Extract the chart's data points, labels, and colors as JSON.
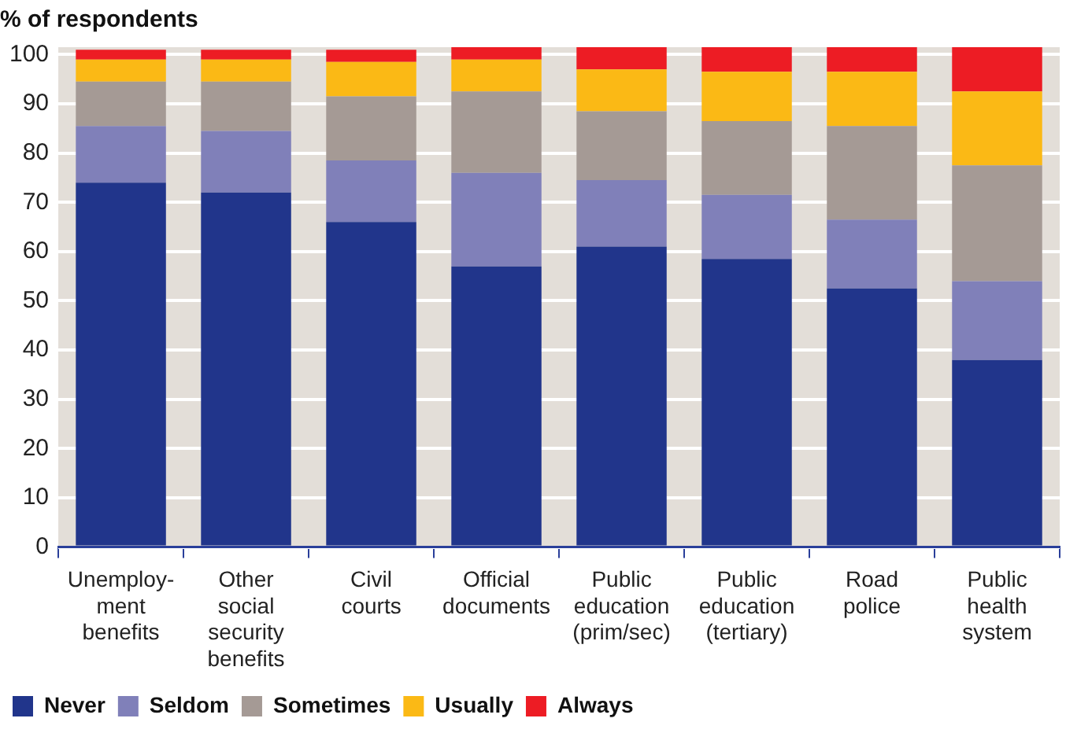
{
  "chart_data": {
    "type": "bar",
    "stacked": true,
    "title": "% of respondents",
    "categories": [
      "Unemploy-ment benefits",
      "Other social security benefits",
      "Civil courts",
      "Official documents",
      "Public education (prim/sec)",
      "Public education (tertiary)",
      "Road police",
      "Public health system"
    ],
    "series": [
      {
        "name": "Never",
        "color": "#21358b",
        "values": [
          74,
          72,
          66,
          57,
          61,
          58.5,
          52.5,
          38
        ]
      },
      {
        "name": "Seldom",
        "color": "#8080b9",
        "values": [
          11.5,
          12.5,
          12.5,
          19,
          13.5,
          13,
          14,
          16
        ]
      },
      {
        "name": "Sometimes",
        "color": "#a59a95",
        "values": [
          9,
          10,
          13,
          16.5,
          14,
          15,
          19,
          23.5
        ]
      },
      {
        "name": "Usually",
        "color": "#fbb915",
        "values": [
          4.5,
          4.5,
          7,
          6.5,
          8.5,
          10,
          11,
          15
        ]
      },
      {
        "name": "Always",
        "color": "#ed1c24",
        "values": [
          2,
          2,
          2.5,
          2.5,
          4.5,
          5,
          5,
          9
        ]
      }
    ],
    "ylim": [
      0,
      101.5
    ],
    "yticks": [
      0,
      10,
      20,
      30,
      40,
      50,
      60,
      70,
      80,
      90,
      100
    ],
    "grid": "y",
    "legend": "bottom left"
  }
}
